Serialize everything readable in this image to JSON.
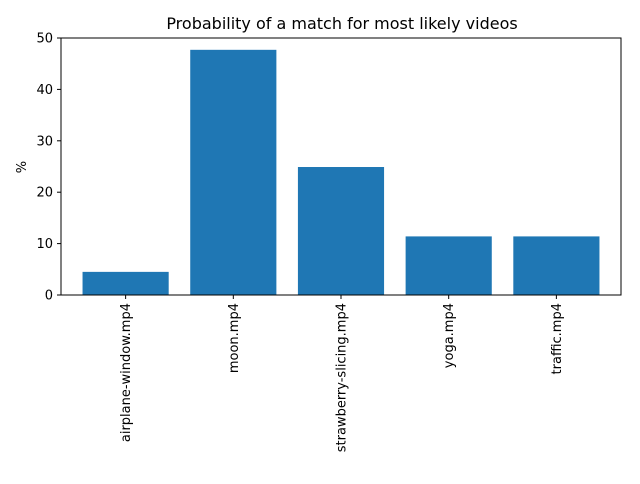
{
  "chart_data": {
    "type": "bar",
    "title": "Probability of a match for most likely videos",
    "xlabel": "",
    "ylabel": "%",
    "categories": [
      "airplane-window.mp4",
      "moon.mp4",
      "strawberry-slicing.mp4",
      "yoga.mp4",
      "traffic.mp4"
    ],
    "values": [
      4.5,
      47.7,
      24.9,
      11.4,
      11.4
    ],
    "ylim": [
      0,
      50
    ],
    "yticks": [
      "0",
      "10",
      "20",
      "30",
      "40",
      "50"
    ],
    "grid": false,
    "legend": "none",
    "bar_color": "#1f77b4"
  }
}
